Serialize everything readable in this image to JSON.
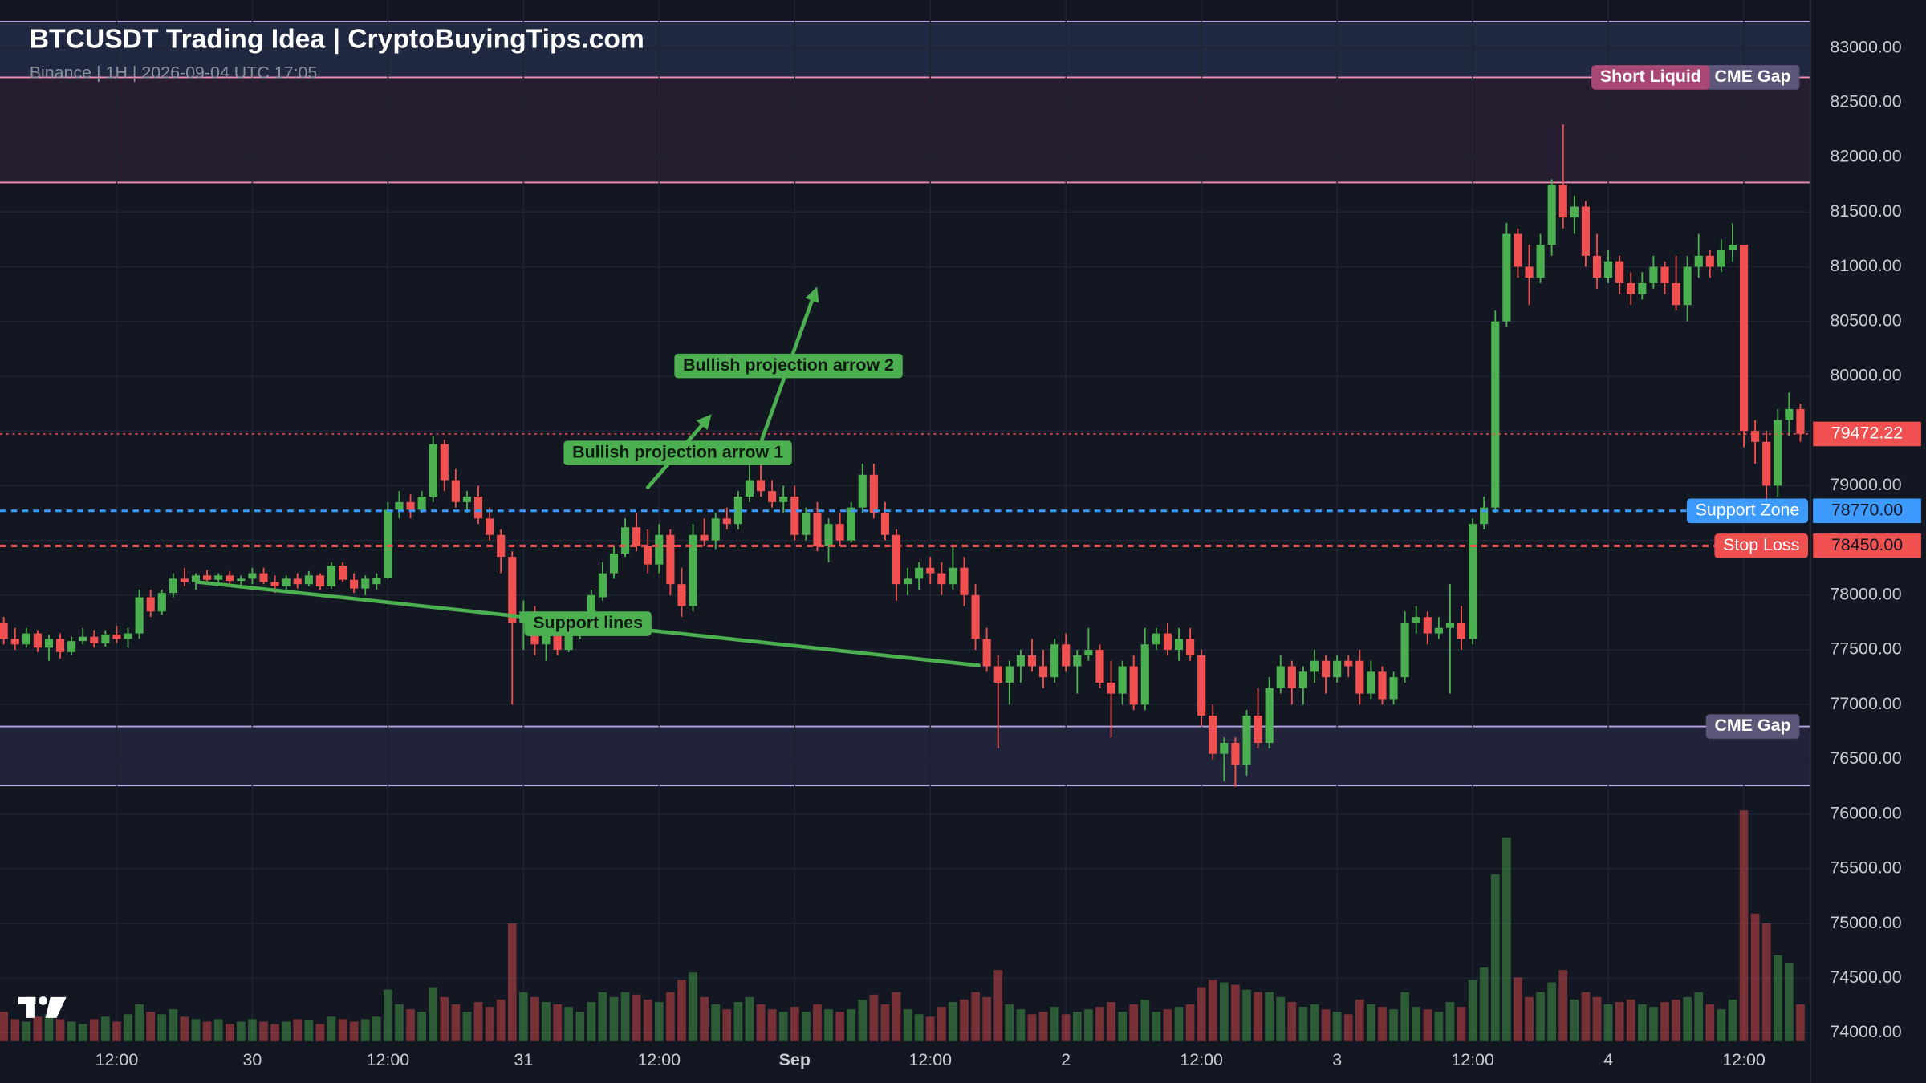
{
  "chart_data": {
    "type": "candlestick",
    "title": "BTCUSDT Trading Idea | CryptoBuyingTips.com",
    "subtitle": "Binance | 1H | 2026-09-04 UTC 17:05",
    "up_color": "#4caf50",
    "down_color": "#f0504f",
    "xlim": [
      -0.33,
      159.9
    ],
    "ylim": [
      73924,
      83437
    ],
    "vlim": [
      0,
      1000
    ],
    "grid": true,
    "xticks": [
      {
        "value": 10,
        "label": "12:00"
      },
      {
        "value": 22,
        "label": "30"
      },
      {
        "value": 34,
        "label": "12:00"
      },
      {
        "value": 46,
        "label": "31"
      },
      {
        "value": 58,
        "label": "12:00"
      },
      {
        "value": 70,
        "label": "Sep"
      },
      {
        "value": 82,
        "label": "12:00"
      },
      {
        "value": 94,
        "label": "2"
      },
      {
        "value": 106,
        "label": "12:00"
      },
      {
        "value": 118,
        "label": "3"
      },
      {
        "value": 130,
        "label": "12:00"
      },
      {
        "value": 142,
        "label": "4"
      },
      {
        "value": 154,
        "label": "12:00"
      }
    ],
    "yticks": [
      {
        "value": 74000,
        "label": "74000.00"
      },
      {
        "value": 74500,
        "label": "74500.00"
      },
      {
        "value": 75000,
        "label": "75000.00"
      },
      {
        "value": 75500,
        "label": "75500.00"
      },
      {
        "value": 76000,
        "label": "76000.00"
      },
      {
        "value": 76500,
        "label": "76500.00"
      },
      {
        "value": 77000,
        "label": "77000.00"
      },
      {
        "value": 77500,
        "label": "77500.00"
      },
      {
        "value": 78000,
        "label": "78000.00"
      },
      {
        "value": 78500,
        "label": "78500.00"
      },
      {
        "value": 79000,
        "label": "79000.00"
      },
      {
        "value": 79500,
        "label": "79500.00"
      },
      {
        "value": 80000,
        "label": "80000.00"
      },
      {
        "value": 80500,
        "label": "80500.00"
      },
      {
        "value": 81000,
        "label": "81000.00"
      },
      {
        "value": 81500,
        "label": "81500.00"
      },
      {
        "value": 82000,
        "label": "82000.00"
      },
      {
        "value": 82500,
        "label": "82500.00"
      },
      {
        "value": 83000,
        "label": "83000.00"
      }
    ],
    "zones": [
      {
        "label": "CME Gap",
        "from": 82730,
        "to": 83240,
        "fill": "#252b47",
        "line": "#b9a7e6",
        "label_color": "#5c5678"
      },
      {
        "label": "Short Liquid",
        "from": 81770,
        "to": 82730,
        "fill": "#2a1f33",
        "line": "#f48fb1",
        "label_color": "#a84676"
      },
      {
        "label": "CME Gap",
        "from": 76260,
        "to": 76800,
        "fill": "#242640",
        "line": "#b9a7e6",
        "label_color": "#5c5678"
      }
    ],
    "price_lines": [
      {
        "label": "Support Zone",
        "value": 78770,
        "value_label": "78770.00",
        "color": "#3d9bff"
      },
      {
        "label": "Stop Loss",
        "value": 78450,
        "value_label": "78450.00",
        "color": "#f0504f"
      }
    ],
    "last_price": {
      "value": 79472.22,
      "label": "79472.22",
      "color": "#f0504f"
    },
    "annotations": [
      {
        "text": "Bullish projection arrow 1",
        "points": [
          [
            57,
            78984
          ],
          [
            62.3,
            79612
          ]
        ],
        "arrow": true,
        "color": "#4caf50"
      },
      {
        "text": "Bullish projection arrow 2",
        "points": [
          [
            67.1,
            79421
          ],
          [
            71.8,
            80767
          ]
        ],
        "arrow": true,
        "color": "#4caf50"
      },
      {
        "text": "Support lines",
        "points": [
          [
            17.1,
            78120
          ],
          [
            86.3,
            77357
          ]
        ],
        "arrow": false,
        "color": "#4caf50"
      }
    ],
    "ohlc": [
      [
        77750,
        77800,
        77550,
        77600
      ],
      [
        77600,
        77700,
        77500,
        77550
      ],
      [
        77550,
        77700,
        77520,
        77650
      ],
      [
        77650,
        77680,
        77480,
        77520
      ],
      [
        77520,
        77640,
        77400,
        77600
      ],
      [
        77600,
        77650,
        77420,
        77480
      ],
      [
        77480,
        77620,
        77450,
        77580
      ],
      [
        77580,
        77700,
        77550,
        77620
      ],
      [
        77620,
        77680,
        77520,
        77560
      ],
      [
        77560,
        77680,
        77530,
        77640
      ],
      [
        77640,
        77720,
        77560,
        77600
      ],
      [
        77600,
        77700,
        77520,
        77650
      ],
      [
        77650,
        78050,
        77600,
        77980
      ],
      [
        77980,
        78050,
        77800,
        77850
      ],
      [
        77850,
        78050,
        77820,
        78020
      ],
      [
        78020,
        78200,
        77980,
        78150
      ],
      [
        78150,
        78250,
        78080,
        78120
      ],
      [
        78120,
        78200,
        78050,
        78180
      ],
      [
        78180,
        78230,
        78100,
        78140
      ],
      [
        78140,
        78200,
        78080,
        78180
      ],
      [
        78180,
        78220,
        78100,
        78130
      ],
      [
        78130,
        78180,
        78060,
        78150
      ],
      [
        78150,
        78250,
        78100,
        78200
      ],
      [
        78200,
        78250,
        78100,
        78120
      ],
      [
        78120,
        78180,
        78020,
        78080
      ],
      [
        78080,
        78180,
        78040,
        78150
      ],
      [
        78150,
        78200,
        78060,
        78100
      ],
      [
        78100,
        78220,
        78080,
        78180
      ],
      [
        78180,
        78200,
        78050,
        78080
      ],
      [
        78080,
        78300,
        78060,
        78270
      ],
      [
        78270,
        78300,
        78120,
        78140
      ],
      [
        78140,
        78200,
        78020,
        78060
      ],
      [
        78060,
        78180,
        78000,
        78150
      ],
      [
        78100,
        78200,
        78050,
        78160
      ],
      [
        78160,
        78850,
        78150,
        78780
      ],
      [
        78780,
        78950,
        78700,
        78850
      ],
      [
        78850,
        78920,
        78700,
        78780
      ],
      [
        78780,
        78950,
        78750,
        78900
      ],
      [
        78900,
        79450,
        78850,
        79380
      ],
      [
        79380,
        79420,
        78950,
        79050
      ],
      [
        79050,
        79150,
        78800,
        78850
      ],
      [
        78850,
        78950,
        78750,
        78900
      ],
      [
        78900,
        79000,
        78650,
        78700
      ],
      [
        78700,
        78800,
        78500,
        78550
      ],
      [
        78550,
        78600,
        78200,
        78350
      ],
      [
        78350,
        78400,
        77000,
        77750
      ],
      [
        77750,
        77950,
        77500,
        77850
      ],
      [
        77850,
        77900,
        77450,
        77550
      ],
      [
        77550,
        77700,
        77400,
        77650
      ],
      [
        77650,
        77800,
        77450,
        77500
      ],
      [
        77500,
        77750,
        77480,
        77700
      ],
      [
        77700,
        77850,
        77600,
        77800
      ],
      [
        77800,
        78050,
        77750,
        78000
      ],
      [
        77980,
        78300,
        77950,
        78200
      ],
      [
        78200,
        78450,
        78150,
        78380
      ],
      [
        78380,
        78700,
        78350,
        78620
      ],
      [
        78620,
        78750,
        78400,
        78450
      ],
      [
        78450,
        78600,
        78200,
        78280
      ],
      [
        78280,
        78650,
        78200,
        78550
      ],
      [
        78550,
        78600,
        78000,
        78100
      ],
      [
        78100,
        78250,
        77800,
        77900
      ],
      [
        77900,
        78650,
        77850,
        78550
      ],
      [
        78550,
        78700,
        78450,
        78500
      ],
      [
        78500,
        78750,
        78420,
        78700
      ],
      [
        78700,
        78800,
        78600,
        78650
      ],
      [
        78650,
        78950,
        78600,
        78900
      ],
      [
        78900,
        79200,
        78850,
        79050
      ],
      [
        79050,
        79200,
        78900,
        78950
      ],
      [
        78950,
        79050,
        78800,
        78850
      ],
      [
        78850,
        79000,
        78750,
        78900
      ],
      [
        78900,
        79000,
        78500,
        78550
      ],
      [
        78550,
        78800,
        78500,
        78750
      ],
      [
        78750,
        78850,
        78400,
        78450
      ],
      [
        78450,
        78700,
        78300,
        78650
      ],
      [
        78650,
        78750,
        78450,
        78500
      ],
      [
        78500,
        78850,
        78480,
        78800
      ],
      [
        78800,
        79200,
        78750,
        79100
      ],
      [
        79100,
        79200,
        78700,
        78750
      ],
      [
        78750,
        78850,
        78500,
        78550
      ],
      [
        78550,
        78600,
        77950,
        78100
      ],
      [
        78100,
        78250,
        78000,
        78150
      ],
      [
        78150,
        78300,
        78050,
        78250
      ],
      [
        78250,
        78350,
        78100,
        78200
      ],
      [
        78200,
        78300,
        78000,
        78100
      ],
      [
        78100,
        78450,
        78050,
        78250
      ],
      [
        78250,
        78350,
        77900,
        78000
      ],
      [
        78000,
        78100,
        77500,
        77600
      ],
      [
        77600,
        77700,
        77300,
        77350
      ],
      [
        77350,
        77450,
        76600,
        77200
      ],
      [
        77200,
        77400,
        77000,
        77350
      ],
      [
        77350,
        77500,
        77200,
        77450
      ],
      [
        77450,
        77600,
        77300,
        77350
      ],
      [
        77350,
        77500,
        77150,
        77250
      ],
      [
        77250,
        77600,
        77200,
        77550
      ],
      [
        77550,
        77650,
        77300,
        77350
      ],
      [
        77350,
        77500,
        77100,
        77450
      ],
      [
        77450,
        77700,
        77400,
        77500
      ],
      [
        77500,
        77550,
        77150,
        77200
      ],
      [
        77200,
        77400,
        76700,
        77100
      ],
      [
        77100,
        77400,
        77000,
        77350
      ],
      [
        77350,
        77450,
        76950,
        77000
      ],
      [
        77000,
        77700,
        76950,
        77550
      ],
      [
        77550,
        77700,
        77500,
        77650
      ],
      [
        77650,
        77750,
        77450,
        77500
      ],
      [
        77500,
        77700,
        77400,
        77600
      ],
      [
        77600,
        77700,
        77400,
        77450
      ],
      [
        77450,
        77500,
        76800,
        76900
      ],
      [
        76900,
        77000,
        76500,
        76550
      ],
      [
        76550,
        76700,
        76300,
        76650
      ],
      [
        76650,
        76700,
        76250,
        76450
      ],
      [
        76450,
        76950,
        76350,
        76900
      ],
      [
        76900,
        77150,
        76600,
        76650
      ],
      [
        76650,
        77250,
        76600,
        77150
      ],
      [
        77150,
        77450,
        77100,
        77350
      ],
      [
        77350,
        77400,
        77000,
        77150
      ],
      [
        77150,
        77350,
        77000,
        77300
      ],
      [
        77300,
        77500,
        77200,
        77400
      ],
      [
        77400,
        77450,
        77100,
        77250
      ],
      [
        77250,
        77450,
        77200,
        77400
      ],
      [
        77400,
        77450,
        77250,
        77350
      ],
      [
        77400,
        77500,
        77000,
        77100
      ],
      [
        77100,
        77400,
        77050,
        77300
      ],
      [
        77300,
        77350,
        77000,
        77050
      ],
      [
        77050,
        77300,
        77000,
        77250
      ],
      [
        77250,
        77850,
        77200,
        77750
      ],
      [
        77750,
        77900,
        77650,
        77800
      ],
      [
        77800,
        77850,
        77550,
        77650
      ],
      [
        77650,
        77800,
        77600,
        77700
      ],
      [
        77700,
        78100,
        77100,
        77750
      ],
      [
        77750,
        77900,
        77500,
        77600
      ],
      [
        77600,
        78700,
        77550,
        78650
      ],
      [
        78650,
        78900,
        78600,
        78800
      ],
      [
        78800,
        80600,
        78750,
        80500
      ],
      [
        80500,
        81400,
        80450,
        81300
      ],
      [
        81300,
        81350,
        80900,
        81000
      ],
      [
        81000,
        81200,
        80650,
        80900
      ],
      [
        80900,
        81300,
        80850,
        81200
      ],
      [
        81200,
        81800,
        81100,
        81750
      ],
      [
        81750,
        82300,
        81350,
        81450
      ],
      [
        81450,
        81650,
        81300,
        81550
      ],
      [
        81550,
        81600,
        81000,
        81100
      ],
      [
        81100,
        81300,
        80800,
        80900
      ],
      [
        80900,
        81150,
        80850,
        81050
      ],
      [
        81050,
        81100,
        80750,
        80850
      ],
      [
        80850,
        80950,
        80650,
        80750
      ],
      [
        80750,
        80950,
        80700,
        80850
      ],
      [
        80850,
        81100,
        80800,
        81000
      ],
      [
        81000,
        81050,
        80750,
        80850
      ],
      [
        80850,
        81100,
        80600,
        80650
      ],
      [
        80650,
        81100,
        80500,
        81000
      ],
      [
        81000,
        81300,
        80900,
        81100
      ],
      [
        81100,
        81150,
        80900,
        81000
      ],
      [
        81000,
        81250,
        80950,
        81150
      ],
      [
        81150,
        81400,
        81050,
        81200
      ],
      [
        81200,
        81200,
        79350,
        79500
      ],
      [
        79500,
        79600,
        79200,
        79400
      ],
      [
        79400,
        79500,
        78850,
        79000
      ],
      [
        79000,
        79700,
        78900,
        79600
      ],
      [
        79600,
        79850,
        79450,
        79700
      ],
      [
        79700,
        79750,
        79400,
        79472.22
      ]
    ],
    "volume": [
      120,
      90,
      80,
      100,
      110,
      90,
      80,
      70,
      90,
      100,
      80,
      110,
      150,
      120,
      110,
      130,
      100,
      90,
      80,
      90,
      70,
      80,
      90,
      80,
      70,
      80,
      90,
      85,
      70,
      100,
      90,
      80,
      90,
      100,
      210,
      150,
      130,
      120,
      220,
      180,
      150,
      120,
      160,
      140,
      170,
      480,
      200,
      180,
      160,
      150,
      140,
      120,
      160,
      200,
      180,
      200,
      190,
      170,
      160,
      200,
      250,
      280,
      180,
      150,
      130,
      160,
      180,
      150,
      130,
      120,
      140,
      120,
      150,
      130,
      120,
      130,
      170,
      190,
      150,
      200,
      130,
      110,
      100,
      140,
      160,
      170,
      200,
      180,
      290,
      150,
      130,
      110,
      120,
      140,
      110,
      120,
      130,
      140,
      160,
      120,
      150,
      170,
      120,
      130,
      140,
      150,
      220,
      250,
      240,
      230,
      210,
      200,
      200,
      180,
      160,
      140,
      150,
      130,
      120,
      110,
      170,
      150,
      140,
      130,
      200,
      140,
      130,
      120,
      160,
      140,
      250,
      300,
      680,
      830,
      260,
      180,
      200,
      240,
      290,
      170,
      200,
      180,
      150,
      160,
      170,
      150,
      140,
      160,
      170,
      180,
      200,
      150,
      130,
      170,
      940,
      520,
      480,
      350,
      320,
      150
    ]
  }
}
